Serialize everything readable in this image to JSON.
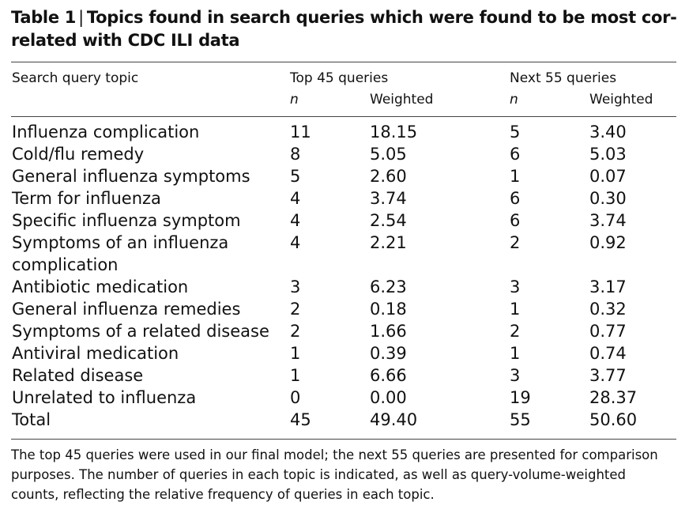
{
  "table": {
    "label": "Table 1",
    "title": "Topics found in search queries which were found to be most cor-related with CDC ILI data",
    "headers": {
      "topic": "Search query topic",
      "group_top": "Top 45 queries",
      "group_next": "Next 55 queries",
      "n": "n",
      "weighted": "Weighted"
    },
    "rows": [
      {
        "topic": "Influenza complication",
        "top_n": "11",
        "top_w": "18.15",
        "next_n": "5",
        "next_w": "3.40"
      },
      {
        "topic": "Cold/flu remedy",
        "top_n": "8",
        "top_w": "5.05",
        "next_n": "6",
        "next_w": "5.03"
      },
      {
        "topic": "General influenza symptoms",
        "top_n": "5",
        "top_w": "2.60",
        "next_n": "1",
        "next_w": "0.07"
      },
      {
        "topic": "Term for influenza",
        "top_n": "4",
        "top_w": "3.74",
        "next_n": "6",
        "next_w": "0.30"
      },
      {
        "topic": "Specific influenza symptom",
        "top_n": "4",
        "top_w": "2.54",
        "next_n": "6",
        "next_w": "3.74"
      },
      {
        "topic": "Symptoms of an influenza complication",
        "top_n": "4",
        "top_w": "2.21",
        "next_n": "2",
        "next_w": "0.92"
      },
      {
        "topic": "Antibiotic medication",
        "top_n": "3",
        "top_w": "6.23",
        "next_n": "3",
        "next_w": "3.17"
      },
      {
        "topic": "General influenza remedies",
        "top_n": "2",
        "top_w": "0.18",
        "next_n": "1",
        "next_w": "0.32"
      },
      {
        "topic": "Symptoms of a related disease",
        "top_n": "2",
        "top_w": "1.66",
        "next_n": "2",
        "next_w": "0.77"
      },
      {
        "topic": "Antiviral medication",
        "top_n": "1",
        "top_w": "0.39",
        "next_n": "1",
        "next_w": "0.74"
      },
      {
        "topic": "Related disease",
        "top_n": "1",
        "top_w": "6.66",
        "next_n": "3",
        "next_w": "3.77"
      },
      {
        "topic": "Unrelated to influenza",
        "top_n": "0",
        "top_w": "0.00",
        "next_n": "19",
        "next_w": "28.37"
      },
      {
        "topic": "Total",
        "top_n": "45",
        "top_w": "49.40",
        "next_n": "55",
        "next_w": "50.60"
      }
    ],
    "footnote": "The top 45 queries were used in our final model; the next 55 queries are presented for comparison purposes. The number of queries in each topic is indicated, as well as query-volume-weighted counts, reflecting the relative frequency of queries in each topic."
  }
}
